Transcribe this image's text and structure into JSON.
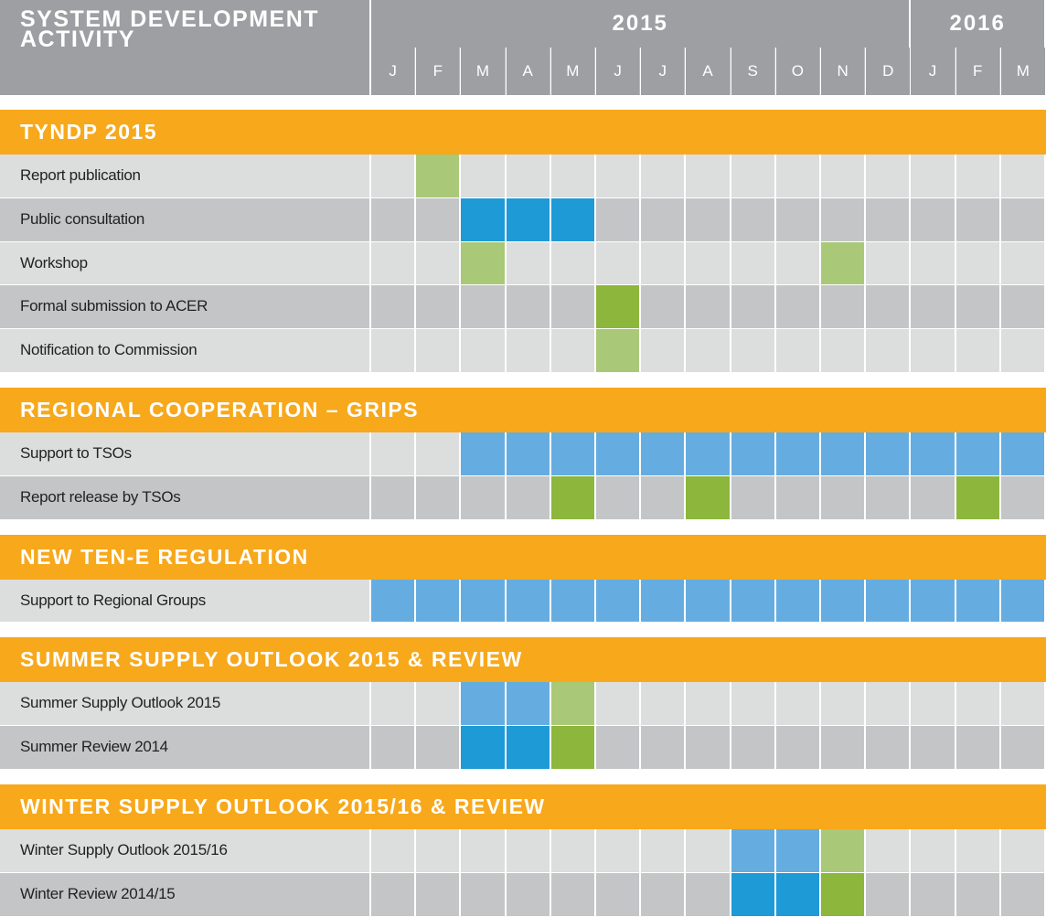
{
  "header": {
    "title": "SYSTEM DEVELOPMENT ACTIVITY",
    "years": [
      {
        "label": "2015",
        "months": [
          "J",
          "F",
          "M",
          "A",
          "M",
          "J",
          "J",
          "A",
          "S",
          "O",
          "N",
          "D"
        ]
      },
      {
        "label": "2016",
        "months": [
          "J",
          "F",
          "M"
        ]
      }
    ]
  },
  "colors": {
    "blue": "#1e9ad6",
    "lightblue": "#65ade0",
    "green": "#8cb63c",
    "lightgreen": "#a9c878"
  },
  "sections": [
    {
      "title": "TYNDP 2015",
      "rows": [
        {
          "label": "Report publication",
          "cells": [
            null,
            "lightgreen",
            null,
            null,
            null,
            null,
            null,
            null,
            null,
            null,
            null,
            null,
            null,
            null,
            null
          ]
        },
        {
          "label": "Public consultation",
          "cells": [
            null,
            null,
            "blue",
            "blue",
            "blue",
            null,
            null,
            null,
            null,
            null,
            null,
            null,
            null,
            null,
            null
          ]
        },
        {
          "label": "Workshop",
          "cells": [
            null,
            null,
            "lightgreen",
            null,
            null,
            null,
            null,
            null,
            null,
            null,
            "lightgreen",
            null,
            null,
            null,
            null
          ]
        },
        {
          "label": "Formal submission to ACER",
          "cells": [
            null,
            null,
            null,
            null,
            null,
            "green",
            null,
            null,
            null,
            null,
            null,
            null,
            null,
            null,
            null
          ]
        },
        {
          "label": "Notification to Commission",
          "cells": [
            null,
            null,
            null,
            null,
            null,
            "lightgreen",
            null,
            null,
            null,
            null,
            null,
            null,
            null,
            null,
            null
          ]
        }
      ]
    },
    {
      "title": "REGIONAL COOPERATION – GRIPS",
      "rows": [
        {
          "label": "Support to TSOs",
          "cells": [
            null,
            null,
            "lightblue",
            "lightblue",
            "lightblue",
            "lightblue",
            "lightblue",
            "lightblue",
            "lightblue",
            "lightblue",
            "lightblue",
            "lightblue",
            "lightblue",
            "lightblue",
            "lightblue"
          ]
        },
        {
          "label": "Report release by TSOs",
          "cells": [
            null,
            null,
            null,
            null,
            "green",
            null,
            null,
            "green",
            null,
            null,
            null,
            null,
            null,
            "green",
            null
          ]
        }
      ]
    },
    {
      "title": "NEW TEN-E REGULATION",
      "rows": [
        {
          "label": "Support to Regional Groups",
          "cells": [
            "lightblue",
            "lightblue",
            "lightblue",
            "lightblue",
            "lightblue",
            "lightblue",
            "lightblue",
            "lightblue",
            "lightblue",
            "lightblue",
            "lightblue",
            "lightblue",
            "lightblue",
            "lightblue",
            "lightblue"
          ]
        }
      ]
    },
    {
      "title": "SUMMER SUPPLY OUTLOOK 2015 & REVIEW",
      "rows": [
        {
          "label": "Summer Supply Outlook 2015",
          "cells": [
            null,
            null,
            "lightblue",
            "lightblue",
            "lightgreen",
            null,
            null,
            null,
            null,
            null,
            null,
            null,
            null,
            null,
            null
          ]
        },
        {
          "label": "Summer Review 2014",
          "cells": [
            null,
            null,
            "blue",
            "blue",
            "green",
            null,
            null,
            null,
            null,
            null,
            null,
            null,
            null,
            null,
            null
          ]
        }
      ]
    },
    {
      "title": "WINTER SUPPLY OUTLOOK 2015/16 & REVIEW",
      "rows": [
        {
          "label": "Winter Supply Outlook 2015/16",
          "cells": [
            null,
            null,
            null,
            null,
            null,
            null,
            null,
            null,
            "lightblue",
            "lightblue",
            "lightgreen",
            null,
            null,
            null,
            null
          ]
        },
        {
          "label": "Winter Review 2014/15",
          "cells": [
            null,
            null,
            null,
            null,
            null,
            null,
            null,
            null,
            "blue",
            "blue",
            "green",
            null,
            null,
            null,
            null
          ]
        }
      ]
    }
  ]
}
